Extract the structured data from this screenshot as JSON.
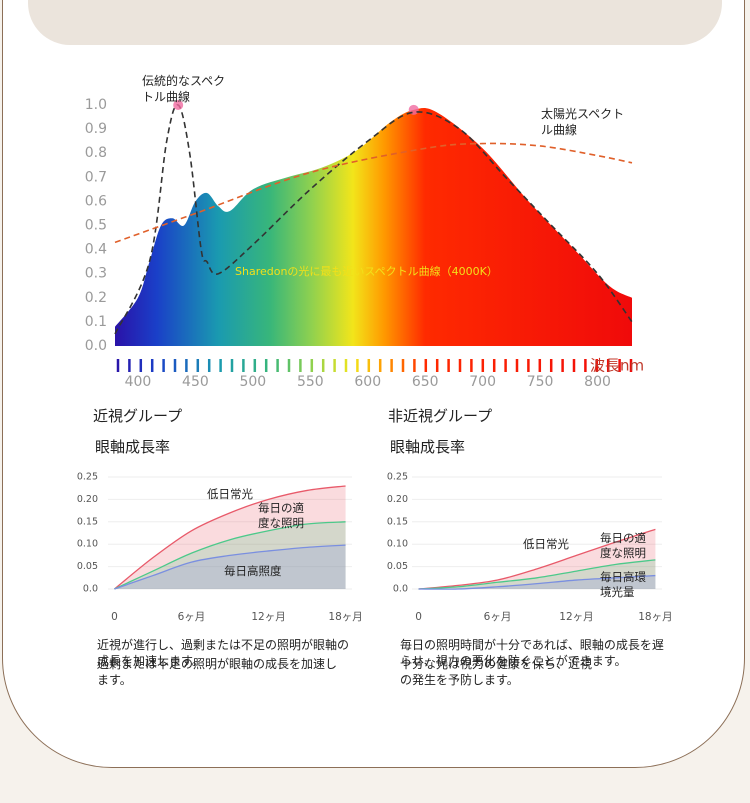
{
  "chart_data": [
    {
      "type": "spectrum",
      "xlim": [
        380,
        830
      ],
      "ylim": [
        0,
        1
      ],
      "xticks": [
        400,
        450,
        500,
        550,
        600,
        650,
        700,
        750,
        800
      ],
      "yticks": [
        {
          "value": 0,
          "label": "0.0"
        },
        0.1,
        0.2,
        0.3,
        0.4,
        0.5,
        0.6,
        0.7,
        0.8,
        0.9,
        {
          "value": 1,
          "label": "1.0"
        }
      ],
      "xlabel": "波長nm",
      "series": [
        {
          "name": "Sharedonの光に最も近いスペクトル曲線（4000K）",
          "style": "area",
          "peak_marker": true,
          "color": "#f2e01a",
          "x": [
            380,
            400,
            410,
            420,
            430,
            440,
            450,
            460,
            470,
            480,
            500,
            530,
            560,
            590,
            620,
            640,
            660,
            700,
            740,
            780,
            810,
            830
          ],
          "values": [
            0.08,
            0.2,
            0.35,
            0.5,
            0.53,
            0.5,
            0.6,
            0.635,
            0.58,
            0.56,
            0.65,
            0.7,
            0.74,
            0.81,
            0.93,
            0.98,
            0.97,
            0.82,
            0.6,
            0.4,
            0.25,
            0.2
          ]
        },
        {
          "name": "伝統的なスペクトル曲線",
          "style": "dashed",
          "peak_marker": true,
          "color": "#333333",
          "x": [
            380,
            410,
            425,
            435,
            445,
            455,
            460,
            470,
            500,
            550,
            600,
            640,
            680,
            720,
            760,
            800,
            830
          ],
          "values": [
            0.05,
            0.35,
            0.85,
            1.0,
            0.8,
            0.4,
            0.35,
            0.3,
            0.42,
            0.65,
            0.85,
            0.97,
            0.9,
            0.7,
            0.5,
            0.3,
            0.1
          ]
        },
        {
          "name": "太陽光スペクトル曲線",
          "style": "dashed",
          "peak_marker": false,
          "color": "#e0602a",
          "x": [
            380,
            450,
            550,
            650,
            700,
            750,
            800,
            830
          ],
          "values": [
            0.43,
            0.55,
            0.72,
            0.82,
            0.84,
            0.83,
            0.79,
            0.76
          ]
        }
      ]
    },
    {
      "type": "band-line",
      "title": "近視グループ",
      "subtitle": "眼軸成長率",
      "xlim": [
        -0.5,
        18.5
      ],
      "ylim": [
        0,
        0.25
      ],
      "xticks": [
        0,
        {
          "value": 6,
          "label": "6ヶ月"
        },
        {
          "value": 12,
          "label": "12ヶ月"
        },
        {
          "value": 18,
          "label": "18ヶ月"
        }
      ],
      "yticks": [
        {
          "value": 0,
          "label": "0.0"
        },
        0.05,
        {
          "value": 0.1,
          "label": "0.10"
        },
        0.15,
        {
          "value": 0.2,
          "label": "0.20"
        },
        0.25
      ],
      "grid": true,
      "x": [
        0,
        3,
        6,
        9,
        12,
        15,
        18
      ],
      "series": [
        {
          "name": "低日常光",
          "color": "#e85a6a",
          "values": [
            0,
            0.07,
            0.13,
            0.17,
            0.2,
            0.22,
            0.23
          ]
        },
        {
          "name": "毎日の適度な照明",
          "color": "#4cc98a",
          "values": [
            0,
            0.04,
            0.08,
            0.11,
            0.13,
            0.145,
            0.15
          ]
        },
        {
          "name": "毎日高照度",
          "color": "#7a8fe0",
          "values": [
            0,
            0.03,
            0.06,
            0.075,
            0.085,
            0.093,
            0.098
          ]
        }
      ],
      "notes": [
        "近視が進行し、過剰または不足の照明が眼軸の成長を加速します。",
        "過剰または不足の照明が眼軸の成長を加速します。"
      ]
    },
    {
      "type": "band-line",
      "title": "非近視グループ",
      "subtitle": "眼軸成長率",
      "xlim": [
        -0.5,
        18.5
      ],
      "ylim": [
        0,
        0.25
      ],
      "xticks": [
        0,
        {
          "value": 6,
          "label": "6ヶ月"
        },
        {
          "value": 12,
          "label": "12ヶ月"
        },
        {
          "value": 18,
          "label": "18ヶ月"
        }
      ],
      "yticks": [
        {
          "value": 0,
          "label": "0.0"
        },
        0.05,
        {
          "value": 0.1,
          "label": "0.10"
        },
        0.15,
        {
          "value": 0.2,
          "label": "0.20"
        },
        0.25
      ],
      "grid": true,
      "x": [
        0,
        3,
        6,
        9,
        12,
        15,
        18
      ],
      "series": [
        {
          "name": "低日常光",
          "color": "#e85a6a",
          "values": [
            0,
            0.008,
            0.02,
            0.045,
            0.075,
            0.105,
            0.133
          ]
        },
        {
          "name": "毎日の適度な照明",
          "color": "#4cc98a",
          "values": [
            0,
            0.005,
            0.015,
            0.025,
            0.04,
            0.055,
            0.065
          ]
        },
        {
          "name": "毎日高環境光量",
          "color": "#7a8fe0",
          "values": [
            0,
            0,
            0.005,
            0.012,
            0.02,
            0.025,
            0.03
          ]
        }
      ],
      "notes": [
        "毎日の照明時間が十分であれば、眼軸の成長を遅らせ、視力の悪化を防ぐことができます。",
        "十分な光は視力の健康を保ち、近視の発生を予防します。"
      ]
    }
  ]
}
